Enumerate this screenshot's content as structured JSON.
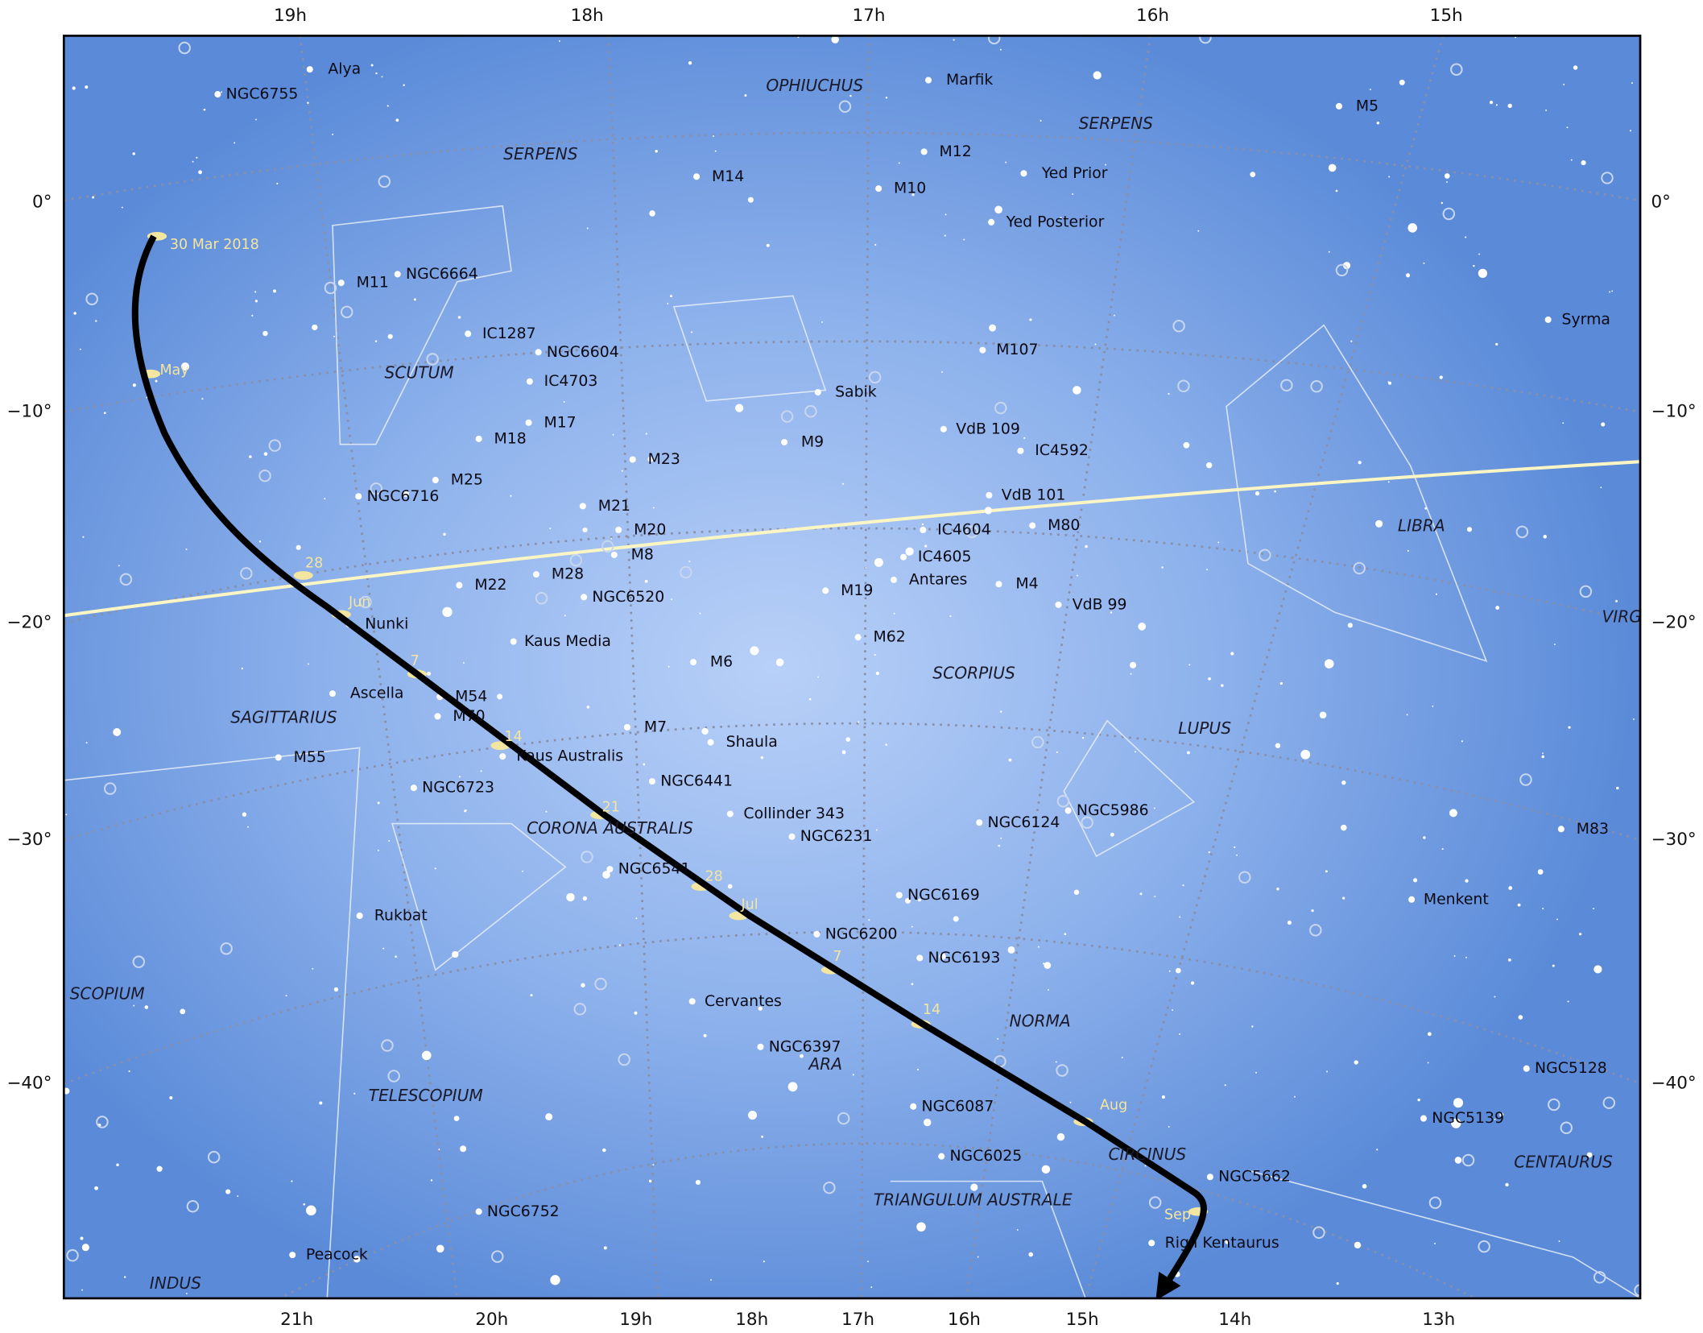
{
  "axes": {
    "top": [
      "19h",
      "18h",
      "17h",
      "16h",
      "15h"
    ],
    "bottom": [
      "21h",
      "20h",
      "19h",
      "18h",
      "17h",
      "16h",
      "15h",
      "14h",
      "13h"
    ],
    "left": [
      "0°",
      "−10°",
      "−20°",
      "−30°",
      "−40°"
    ],
    "right": [
      "0°",
      "−10°",
      "−20°",
      "−30°",
      "−40°"
    ]
  },
  "constellations": [
    "OPHIUCHUS",
    "SERPENS",
    "SERPENS",
    "SCUTUM",
    "LIBRA",
    "VIRG",
    "SCORPIUS",
    "LUPUS",
    "SAGITTARIUS",
    "CORONA AUSTRALIS",
    "SCOPIUM",
    "NORMA",
    "ARA",
    "TELESCOPIUM",
    "CIRCINUS",
    "CENTAURUS",
    "TRIANGULUM AUSTRALE",
    "INDUS"
  ],
  "objects": [
    "Alya",
    "NGC6755",
    "Marfik",
    "M5",
    "M12",
    "M14",
    "M10",
    "Yed Prior",
    "Yed Posterior",
    "M11",
    "NGC6664",
    "Syrma",
    "IC1287",
    "NGC6604",
    "M107",
    "IC4703",
    "Sabik",
    "M17",
    "M18",
    "M9",
    "VdB 109",
    "IC4592",
    "M25",
    "M23",
    "NGC6716",
    "VdB 101",
    "M21",
    "M20",
    "M80",
    "IC4604",
    "M8",
    "IC4605",
    "M28",
    "M22",
    "NGC6520",
    "Antares",
    "M4",
    "M19",
    "VdB 99",
    "Nunki",
    "Kaus Media",
    "M62",
    "M6",
    "M54",
    "Ascella",
    "M70",
    "Kaus Australis",
    "Shaula",
    "M7",
    "M55",
    "NGC6441",
    "NGC6723",
    "Collinder 343",
    "NGC5986",
    "NGC6124",
    "NGC6231",
    "M83",
    "NGC6541",
    "NGC6169",
    "Menkent",
    "Rukbat",
    "NGC6200",
    "NGC6193",
    "Cervantes",
    "NGC6397",
    "NGC5128",
    "NGC5139",
    "NGC6087",
    "NGC6025",
    "NGC5662",
    "NGC6752",
    "Rigil Kentaurus",
    "Peacock"
  ],
  "path_labels": [
    "30 Mar 2018",
    "May",
    "28",
    "Jun",
    "7",
    "14",
    "21",
    "28",
    "Jul",
    "7",
    "14",
    "Aug",
    "Sep"
  ]
}
